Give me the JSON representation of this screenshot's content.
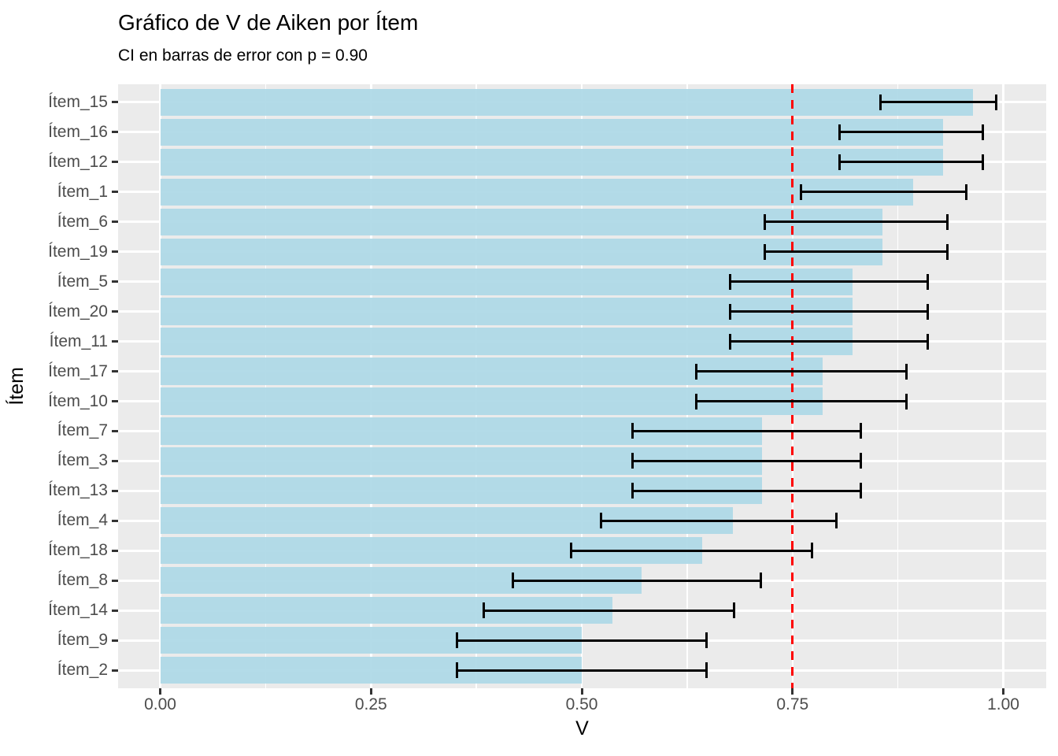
{
  "figure": {
    "title": "Gráfico de V de Aiken por Ítem",
    "subtitle": "CI en barras de error con p = 0.90"
  },
  "colors": {
    "bar_fill": "#ADD8E6",
    "panel_background": "#EBEBEB",
    "gridline": "#FFFFFF",
    "error_bar": "#000000",
    "reference_line": "#FF0000",
    "axis_text": "#4D4D4D",
    "tick_mark": "#333333",
    "title_text": "#000000"
  },
  "chart_data": {
    "type": "bar",
    "orientation": "horizontal",
    "title": "Gráfico de V de Aiken por Ítem",
    "subtitle": "CI en barras de error con p = 0.90",
    "xlabel": "V",
    "ylabel": "Ítem",
    "xlim": [
      -0.05,
      1.05
    ],
    "grid": true,
    "legend": "none",
    "x_major_ticks": [
      0,
      0.25,
      0.5,
      0.75,
      1.0
    ],
    "x_tick_labels": [
      "0.00",
      "0.25",
      "0.50",
      "0.75",
      "1.00"
    ],
    "x_minor_gridlines": [
      0.125,
      0.375,
      0.625,
      0.875
    ],
    "reference_line": {
      "value": 0.75,
      "style": "dashed",
      "color": "#FF0000"
    },
    "error_bars": {
      "type": "confidence-interval",
      "p": 0.9
    },
    "items": [
      {
        "label": "Ítem_15",
        "v": 0.964,
        "ci_low": 0.854,
        "ci_high": 0.992
      },
      {
        "label": "Ítem_16",
        "v": 0.929,
        "ci_low": 0.806,
        "ci_high": 0.976
      },
      {
        "label": "Ítem_12",
        "v": 0.929,
        "ci_low": 0.806,
        "ci_high": 0.976
      },
      {
        "label": "Ítem_1",
        "v": 0.893,
        "ci_low": 0.76,
        "ci_high": 0.956
      },
      {
        "label": "Ítem_6",
        "v": 0.857,
        "ci_low": 0.717,
        "ci_high": 0.934
      },
      {
        "label": "Ítem_19",
        "v": 0.857,
        "ci_low": 0.717,
        "ci_high": 0.934
      },
      {
        "label": "Ítem_5",
        "v": 0.821,
        "ci_low": 0.676,
        "ci_high": 0.91
      },
      {
        "label": "Ítem_20",
        "v": 0.821,
        "ci_low": 0.676,
        "ci_high": 0.91
      },
      {
        "label": "Ítem_11",
        "v": 0.821,
        "ci_low": 0.676,
        "ci_high": 0.91
      },
      {
        "label": "Ítem_17",
        "v": 0.786,
        "ci_low": 0.636,
        "ci_high": 0.885
      },
      {
        "label": "Ítem_10",
        "v": 0.786,
        "ci_low": 0.636,
        "ci_high": 0.885
      },
      {
        "label": "Ítem_7",
        "v": 0.714,
        "ci_low": 0.56,
        "ci_high": 0.831
      },
      {
        "label": "Ítem_3",
        "v": 0.714,
        "ci_low": 0.56,
        "ci_high": 0.831
      },
      {
        "label": "Ítem_13",
        "v": 0.714,
        "ci_low": 0.56,
        "ci_high": 0.831
      },
      {
        "label": "Ítem_4",
        "v": 0.679,
        "ci_low": 0.523,
        "ci_high": 0.802
      },
      {
        "label": "Ítem_18",
        "v": 0.643,
        "ci_low": 0.487,
        "ci_high": 0.773
      },
      {
        "label": "Ítem_8",
        "v": 0.571,
        "ci_low": 0.418,
        "ci_high": 0.712
      },
      {
        "label": "Ítem_14",
        "v": 0.536,
        "ci_low": 0.384,
        "ci_high": 0.681
      },
      {
        "label": "Ítem_9",
        "v": 0.5,
        "ci_low": 0.352,
        "ci_high": 0.648
      },
      {
        "label": "Ítem_2",
        "v": 0.5,
        "ci_low": 0.352,
        "ci_high": 0.648
      }
    ]
  }
}
